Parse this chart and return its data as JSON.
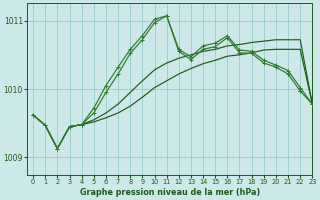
{
  "title": "Graphe pression niveau de la mer (hPa)",
  "bg_color": "#cce8e8",
  "grid_color": "#99cccc",
  "line_color_dark": "#1a5c1a",
  "line_color_mid": "#2d7a2d",
  "xlim": [
    -0.5,
    23
  ],
  "ylim": [
    1008.75,
    1011.25
  ],
  "yticks": [
    1009,
    1010,
    1011
  ],
  "xticks": [
    0,
    1,
    2,
    3,
    4,
    5,
    6,
    7,
    8,
    9,
    10,
    11,
    12,
    13,
    14,
    15,
    16,
    17,
    18,
    19,
    20,
    21,
    22,
    23
  ],
  "series_volatile1": [
    1009.62,
    1009.47,
    1009.13,
    1009.45,
    1009.48,
    1009.65,
    1009.95,
    1010.22,
    1010.52,
    1010.72,
    1010.97,
    1011.07,
    1010.55,
    1010.43,
    1010.58,
    1010.62,
    1010.75,
    1010.53,
    1010.52,
    1010.38,
    1010.32,
    1010.22,
    1009.97,
    1009.78
  ],
  "series_volatile2": [
    1009.62,
    1009.47,
    1009.13,
    1009.45,
    1009.48,
    1009.72,
    1010.05,
    1010.32,
    1010.58,
    1010.78,
    1011.02,
    1011.07,
    1010.58,
    1010.47,
    1010.63,
    1010.67,
    1010.78,
    1010.57,
    1010.55,
    1010.42,
    1010.35,
    1010.27,
    1010.02,
    1009.78
  ],
  "series_smooth1": [
    1009.62,
    1009.47,
    1009.13,
    1009.45,
    1009.48,
    1009.55,
    1009.65,
    1009.78,
    1009.95,
    1010.12,
    1010.28,
    1010.38,
    1010.45,
    1010.5,
    1010.55,
    1010.58,
    1010.63,
    1010.65,
    1010.68,
    1010.7,
    1010.72,
    1010.72,
    1010.72,
    1009.78
  ],
  "series_smooth2": [
    1009.62,
    1009.47,
    1009.13,
    1009.45,
    1009.48,
    1009.52,
    1009.58,
    1009.65,
    1009.75,
    1009.88,
    1010.02,
    1010.12,
    1010.22,
    1010.3,
    1010.37,
    1010.42,
    1010.48,
    1010.5,
    1010.53,
    1010.57,
    1010.58,
    1010.58,
    1010.58,
    1009.78
  ]
}
